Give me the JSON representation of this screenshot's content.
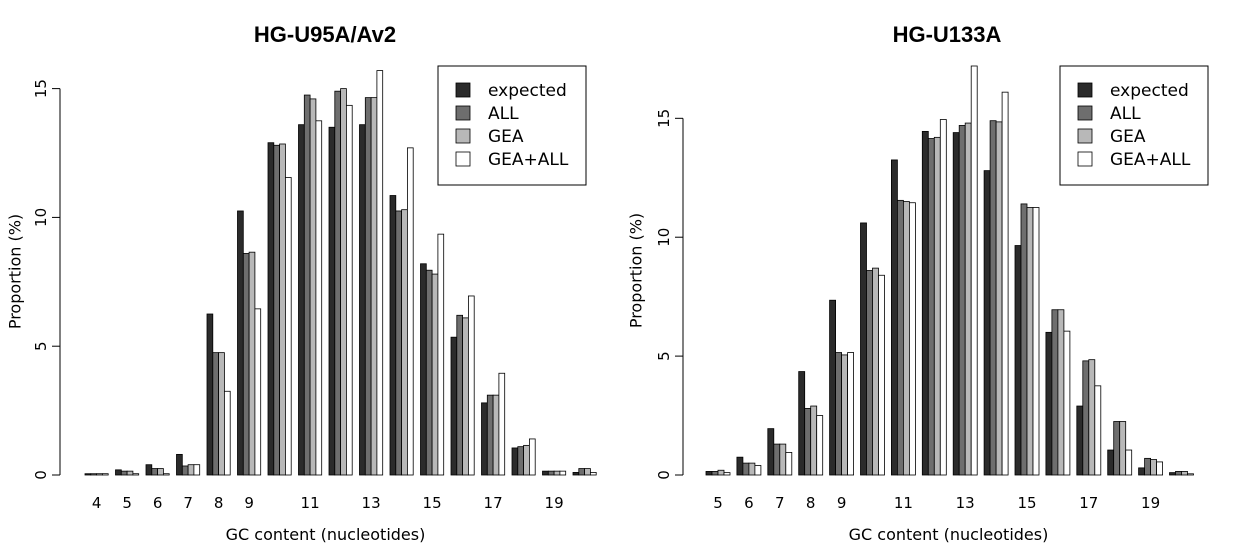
{
  "colors": {
    "expected": "#2b2b2b",
    "ALL": "#6e6e6e",
    "GEA": "#b8b8b8",
    "GEA+ALL": "#ffffff"
  },
  "chart_data": [
    {
      "type": "bar",
      "title": "HG-U95A/Av2",
      "xlabel": "GC content (nucleotides)",
      "ylabel": "Proportion (%)",
      "ylim": [
        0,
        15.8
      ],
      "yticks": [
        0,
        5,
        10,
        15
      ],
      "categories": [
        4,
        5,
        6,
        7,
        8,
        9,
        10,
        11,
        12,
        13,
        14,
        15,
        16,
        17,
        18,
        19,
        20
      ],
      "x_tick_labels": [
        "4",
        "5",
        "6",
        "7",
        "8",
        "9",
        "",
        "11",
        "",
        "13",
        "",
        "15",
        "",
        "17",
        "",
        "19",
        ""
      ],
      "legend_position": "top-right",
      "grid": false,
      "series": [
        {
          "name": "expected",
          "values": [
            0.05,
            0.2,
            0.4,
            0.8,
            6.25,
            10.25,
            12.9,
            13.6,
            13.5,
            13.6,
            10.85,
            8.2,
            5.35,
            2.8,
            1.05,
            0.15,
            0.1
          ]
        },
        {
          "name": "ALL",
          "values": [
            0.05,
            0.15,
            0.25,
            0.35,
            4.75,
            8.6,
            12.8,
            14.75,
            14.9,
            14.65,
            10.25,
            7.95,
            6.2,
            3.1,
            1.1,
            0.15,
            0.25
          ]
        },
        {
          "name": "GEA",
          "values": [
            0.05,
            0.15,
            0.25,
            0.4,
            4.75,
            8.65,
            12.85,
            14.6,
            15.0,
            14.65,
            10.3,
            7.8,
            6.1,
            3.1,
            1.15,
            0.15,
            0.25
          ]
        },
        {
          "name": "GEA+ALL",
          "values": [
            0.05,
            0.05,
            0.05,
            0.4,
            3.25,
            6.45,
            11.55,
            13.75,
            14.35,
            15.7,
            12.7,
            9.35,
            6.95,
            3.95,
            1.4,
            0.15,
            0.1
          ]
        }
      ]
    },
    {
      "type": "bar",
      "title": "HG-U133A",
      "xlabel": "GC content (nucleotides)",
      "ylabel": "Proportion (%)",
      "ylim": [
        0,
        17.2
      ],
      "yticks": [
        0,
        5,
        10,
        15
      ],
      "categories": [
        5,
        6,
        7,
        8,
        9,
        10,
        11,
        12,
        13,
        14,
        15,
        16,
        17,
        18,
        19,
        20
      ],
      "x_tick_labels": [
        "5",
        "6",
        "7",
        "8",
        "9",
        "",
        "11",
        "",
        "13",
        "",
        "15",
        "",
        "17",
        "",
        "19",
        ""
      ],
      "legend_position": "top-right",
      "grid": false,
      "series": [
        {
          "name": "expected",
          "values": [
            0.15,
            0.75,
            1.95,
            4.35,
            7.35,
            10.6,
            13.25,
            14.45,
            14.4,
            12.8,
            9.65,
            6.0,
            2.9,
            1.05,
            0.3,
            0.1
          ]
        },
        {
          "name": "ALL",
          "values": [
            0.15,
            0.5,
            1.3,
            2.8,
            5.15,
            8.6,
            11.55,
            14.15,
            14.7,
            14.9,
            11.4,
            6.95,
            4.8,
            2.25,
            0.7,
            0.15
          ]
        },
        {
          "name": "GEA",
          "values": [
            0.2,
            0.5,
            1.3,
            2.9,
            5.05,
            8.7,
            11.5,
            14.2,
            14.8,
            14.85,
            11.25,
            6.95,
            4.85,
            2.25,
            0.65,
            0.15
          ]
        },
        {
          "name": "GEA+ALL",
          "values": [
            0.1,
            0.4,
            0.95,
            2.5,
            5.15,
            8.4,
            11.45,
            14.95,
            17.2,
            16.1,
            11.25,
            6.05,
            3.75,
            1.05,
            0.55,
            0.05
          ]
        }
      ]
    }
  ]
}
